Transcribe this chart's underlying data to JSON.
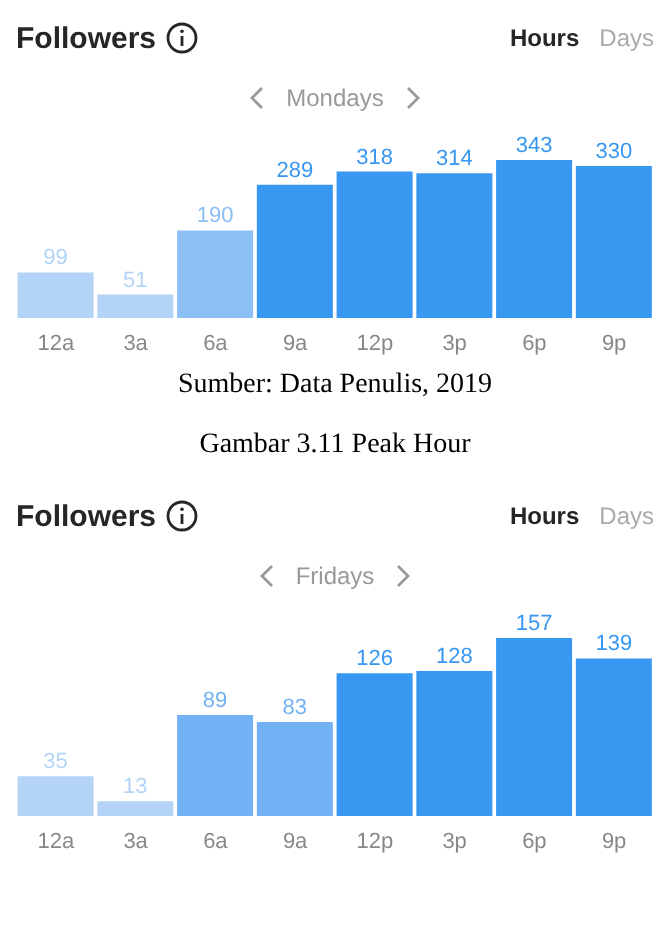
{
  "chart_data": [
    {
      "type": "bar",
      "title": "Followers",
      "subtitle": "Mondays",
      "categories": [
        "12a",
        "3a",
        "6a",
        "9a",
        "12p",
        "3p",
        "6p",
        "9p"
      ],
      "values": [
        99,
        51,
        190,
        289,
        318,
        314,
        343,
        330
      ],
      "colors": [
        "#b3d4f7",
        "#b3d4f7",
        "#8cc0f5",
        "#3897f0",
        "#3897f0",
        "#3897f0",
        "#3897f0",
        "#3897f0"
      ],
      "data_labels": true,
      "tick_labels": "x",
      "annotations": [
        "Hours",
        "Days",
        "Sumber: Data Penulis, 2019",
        "Gambar 3.11 Peak Hour"
      ]
    },
    {
      "type": "bar",
      "title": "Followers",
      "subtitle": "Fridays",
      "categories": [
        "12a",
        "3a",
        "6a",
        "9a",
        "12p",
        "3p",
        "6p",
        "9p"
      ],
      "values": [
        35,
        13,
        89,
        83,
        126,
        128,
        157,
        139
      ],
      "colors": [
        "#b3d4f7",
        "#b3d4f7",
        "#72b1f3",
        "#72b1f3",
        "#3897f0",
        "#3897f0",
        "#3897f0",
        "#3897f0"
      ],
      "data_labels": true,
      "tick_labels": "x",
      "annotations": [
        "Hours",
        "Days"
      ]
    }
  ]
}
